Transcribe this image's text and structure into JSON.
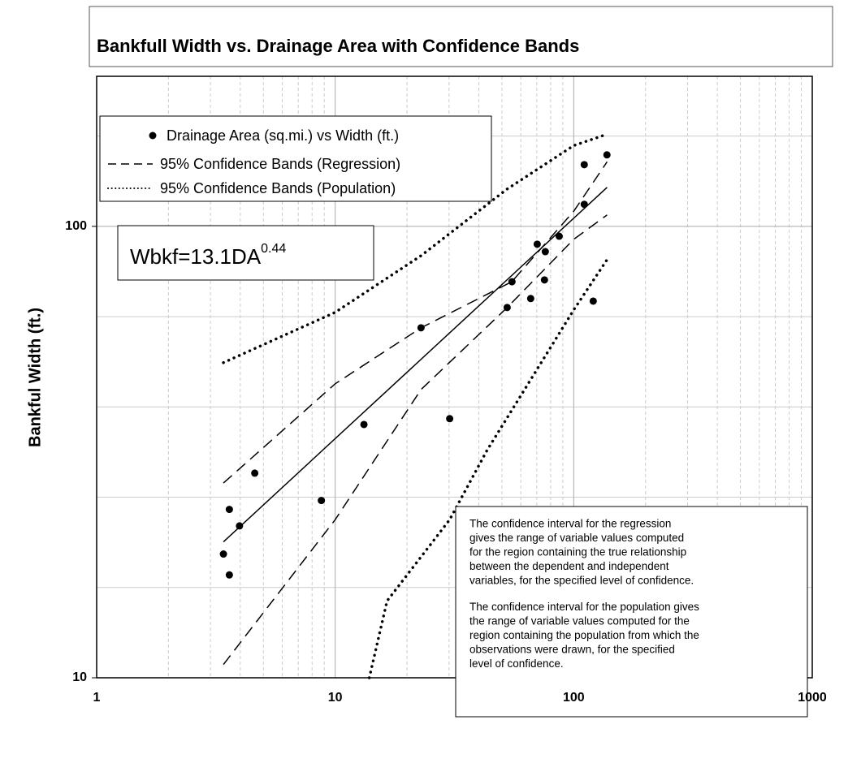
{
  "chart_data": {
    "type": "scatter",
    "title": "Bankfull Width vs. Drainage Area with Confidence Bands",
    "y_label": "Bankful Width (ft.)",
    "log_x": true,
    "log_y": true,
    "grid": true,
    "xlim": [
      1,
      1000
    ],
    "ylim": [
      10,
      215
    ],
    "xticks": [
      1,
      10,
      100,
      1000
    ],
    "yticks": [
      10,
      100
    ],
    "x_minor_ticks": [
      2,
      3,
      4,
      5,
      6,
      7,
      8,
      9,
      20,
      30,
      40,
      50,
      60,
      70,
      80,
      90,
      200,
      300,
      400,
      500,
      600,
      700,
      800,
      900
    ],
    "y_minor_ticks": [
      15.85,
      25.12,
      39.81,
      63.1,
      158.5
    ],
    "series": [
      {
        "name": "Drainage Area (sq.mi.) vs Width (ft.)",
        "color": "#000000",
        "x": [
          3.4,
          3.6,
          3.6,
          3.97,
          4.6,
          8.75,
          13.2,
          22.9,
          30.2,
          52.6,
          55.1,
          66.0,
          70.3,
          86.9,
          76.0,
          75.4,
          110.7,
          110.7,
          120.7,
          137.8
        ],
        "values": [
          18.8,
          16.9,
          23.6,
          21.7,
          28.4,
          24.7,
          36.4,
          59.6,
          37.5,
          66.1,
          75.4,
          69.2,
          91.3,
          95.1,
          87.9,
          76.1,
          137,
          111.9,
          68.3,
          144
        ]
      }
    ],
    "fit_line": {
      "color": "#000000",
      "x": [
        3.4,
        138
      ],
      "values": [
        20.0,
        122
      ]
    },
    "bands": [
      {
        "name": "95% Confidence Bands (Regression)",
        "style": "dashed",
        "upper": {
          "x": [
            3.4,
            10,
            22.9,
            55,
            100,
            138
          ],
          "values": [
            27.0,
            44.8,
            59.6,
            75.4,
            108,
            139
          ]
        },
        "lower": {
          "x": [
            3.4,
            10,
            22.9,
            52.6,
            100,
            138
          ],
          "values": [
            10.7,
            22.4,
            43.5,
            66.1,
            93.6,
            106
          ]
        }
      },
      {
        "name": "95% Confidence Bands (Population)",
        "style": "dotted",
        "upper": {
          "x": [
            3.4,
            10,
            22.9,
            52.6,
            100,
            138
          ],
          "values": [
            49.9,
            64.5,
            86.1,
            121,
            151,
            160
          ]
        },
        "lower": {
          "x": [
            13.9,
            16.5,
            30.2,
            43.3,
            100,
            138
          ],
          "values": [
            10,
            14.8,
            22.4,
            31.9,
            65.3,
            84.4
          ]
        }
      }
    ],
    "equation": {
      "text": "Wbkf=13.1DA",
      "exponent": "0.44"
    },
    "notes": [
      [
        "The confidence interval for the regression",
        "gives the range of variable values computed",
        "for the region containing the true relationship",
        "between the dependent and independent",
        "variables, for the specified level of confidence."
      ],
      [
        "The confidence interval for the population gives",
        "the range of variable values computed for the",
        "region containing the population from which the",
        "observations were drawn, for the specified",
        "level of confidence."
      ]
    ]
  }
}
